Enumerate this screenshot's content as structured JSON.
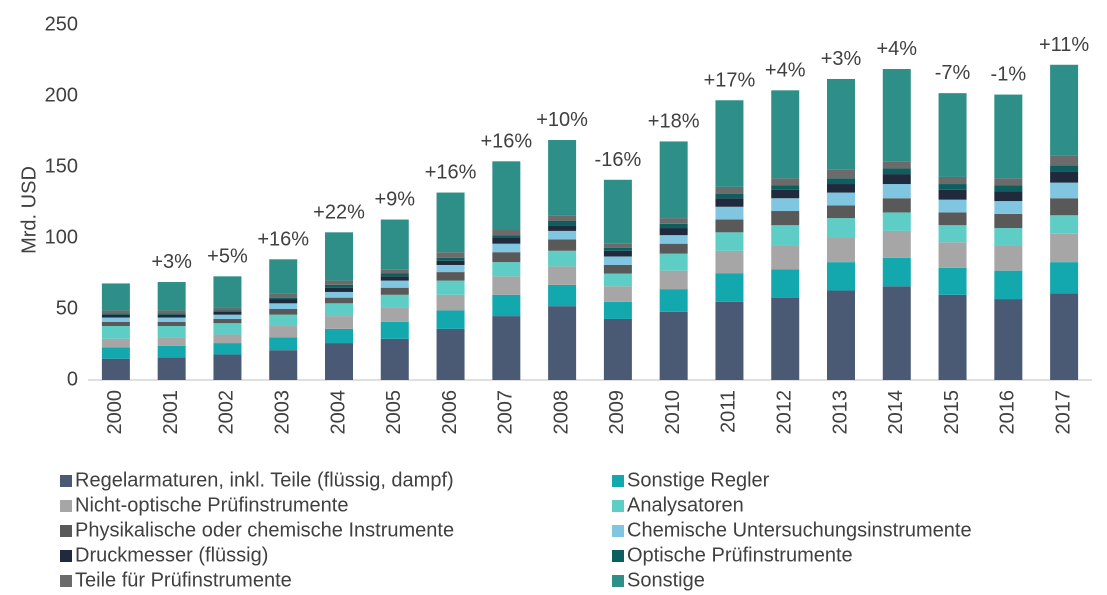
{
  "chart_data": {
    "type": "stacked_bar",
    "y_label": "Mrd. USD",
    "categories": [
      "2000",
      "2001",
      "2002",
      "2003",
      "2004",
      "2005",
      "2006",
      "2007",
      "2008",
      "2009",
      "2010",
      "2011",
      "2012",
      "2013",
      "2014",
      "2015",
      "2016",
      "2017"
    ],
    "annotations": [
      null,
      "+3%",
      "+5%",
      "+16%",
      "+22%",
      "+9%",
      "+16%",
      "+16%",
      "+10%",
      "-16%",
      "+18%",
      "+17%",
      "+4%",
      "+3%",
      "+4%",
      "-7%",
      "-1%",
      "+11%"
    ],
    "ylim": [
      0,
      250
    ],
    "yticks": [
      0,
      50,
      100,
      150,
      200,
      250
    ],
    "grid": false,
    "series": [
      {
        "name": "Regelarmaturen, inkl. Teile (flüssig, dampf)",
        "color": "#4a5a75",
        "values": [
          15,
          16,
          18,
          21,
          26,
          29,
          36,
          45,
          52,
          43,
          48,
          55,
          58,
          63,
          66,
          60,
          57,
          61
        ]
      },
      {
        "name": "Sonstige Regler",
        "color": "#13a8ae",
        "values": [
          8,
          8,
          8,
          9,
          10,
          12,
          13,
          15,
          15,
          12,
          16,
          20,
          20,
          20,
          20,
          19,
          20,
          22
        ]
      },
      {
        "name": "Nicht-optische Prüfinstrumente",
        "color": "#a6a6a6",
        "values": [
          6,
          6,
          6,
          8,
          9,
          10,
          11,
          13,
          13,
          11,
          13,
          16,
          17,
          17,
          19,
          18,
          18,
          20
        ]
      },
      {
        "name": "Analysatoren",
        "color": "#5ecdc6",
        "values": [
          9,
          8,
          8,
          8,
          9,
          9,
          10,
          10,
          11,
          9,
          12,
          13,
          14,
          14,
          13,
          12,
          12,
          13
        ]
      },
      {
        "name": "Physikalische oder chemische Instrumente",
        "color": "#595959",
        "values": [
          3,
          3,
          3,
          4,
          4,
          5,
          6,
          7,
          8,
          6,
          7,
          9,
          10,
          9,
          10,
          9,
          10,
          12
        ]
      },
      {
        "name": "Chemische Untersuchungsinstrumente",
        "color": "#80c6e0",
        "values": [
          3,
          3,
          3,
          4,
          4,
          5,
          5,
          6,
          6,
          6,
          6,
          9,
          9,
          9,
          10,
          9,
          9,
          11
        ]
      },
      {
        "name": "Druckmesser (flüssig)",
        "color": "#1f2a3c",
        "values": [
          2,
          2,
          2,
          3,
          3,
          3,
          3,
          4,
          4,
          4,
          5,
          6,
          6,
          6,
          7,
          7,
          7,
          8
        ]
      },
      {
        "name": "Optische Prüfinstrumente",
        "color": "#0d5f5f",
        "values": [
          1,
          1,
          1,
          1,
          2,
          2,
          2,
          2,
          3,
          2,
          3,
          3,
          3,
          4,
          4,
          4,
          4,
          4
        ]
      },
      {
        "name": "Teile für Prüfinstrumente",
        "color": "#6b6b6b",
        "values": [
          2,
          2,
          2,
          3,
          3,
          3,
          4,
          4,
          4,
          3,
          4,
          5,
          5,
          6,
          5,
          5,
          5,
          7
        ]
      },
      {
        "name": "Sonstige",
        "color": "#2e8f88",
        "values": [
          19,
          20,
          22,
          24,
          34,
          35,
          42,
          48,
          53,
          45,
          54,
          61,
          62,
          64,
          65,
          59,
          59,
          64
        ]
      }
    ]
  }
}
